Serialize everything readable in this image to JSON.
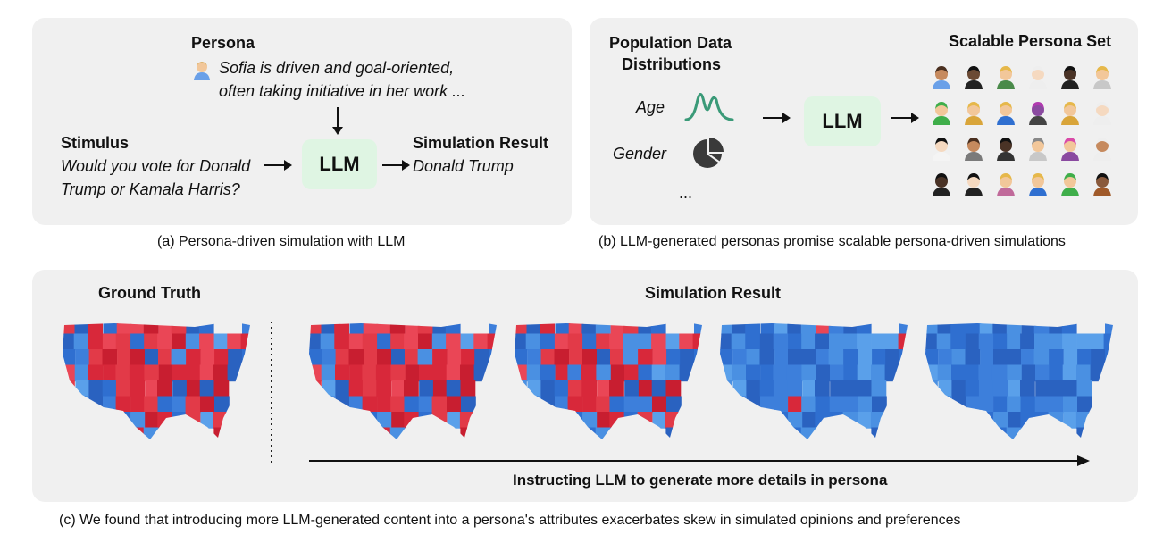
{
  "panel_a": {
    "persona_label": "Persona",
    "persona_line1": "Sofia is driven and goal-oriented,",
    "persona_line2": "often taking initiative in her work ...",
    "stimulus_label": "Stimulus",
    "stimulus_line1": "Would you vote for Donald",
    "stimulus_line2": "Trump or Kamala Harris?",
    "llm_label": "LLM",
    "result_label": "Simulation Result",
    "result_value": "Donald Trump",
    "caption": "(a) Persona-driven simulation with LLM"
  },
  "panel_b": {
    "pop_label_line1": "Population Data",
    "pop_label_line2": "Distributions",
    "age_label": "Age",
    "gender_label": "Gender",
    "ellipsis": "...",
    "llm_label": "LLM",
    "persona_set_label": "Scalable Persona Set",
    "caption": "(b) LLM-generated personas promise scalable persona-driven simulations"
  },
  "panel_c": {
    "ground_truth_label": "Ground Truth",
    "simulation_label": "Simulation Result",
    "arrow_label": "Instructing LLM to generate more details in persona",
    "caption": "(c) We found that introducing more LLM-generated content into a persona's attributes exacerbates skew in simulated opinions and preferences"
  },
  "colors": {
    "panel_bg": "#f0f0f0",
    "llm_box": "#dff5e3",
    "republican_red": "#e23a48",
    "democrat_blue": "#3d7fdb",
    "age_curve": "#3a9a78"
  },
  "maps": [
    {
      "name": "ground-truth",
      "red_share": 0.6
    },
    {
      "name": "simulation-1",
      "red_share": 0.62
    },
    {
      "name": "simulation-2",
      "red_share": 0.45
    },
    {
      "name": "simulation-3",
      "red_share": 0.02
    },
    {
      "name": "simulation-4",
      "red_share": 0.0
    }
  ]
}
